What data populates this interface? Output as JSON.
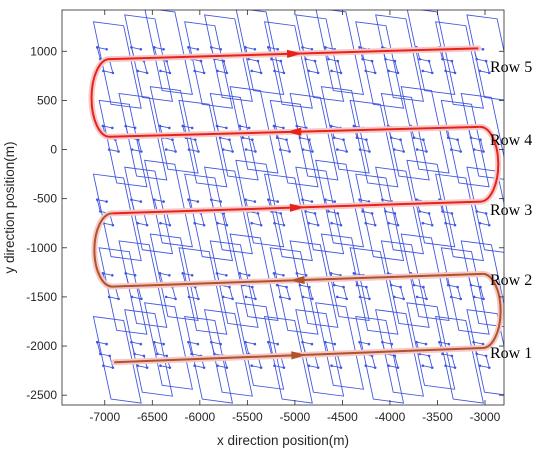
{
  "chart_data": {
    "type": "line",
    "xlabel": "x direction position(m)",
    "ylabel": "y direction position(m)",
    "xlim": [
      -7450,
      -2800
    ],
    "ylim": [
      -2600,
      1420
    ],
    "xticks": [
      -7000,
      -6500,
      -6000,
      -5500,
      -5000,
      -4500,
      -4000,
      -3500,
      -3000
    ],
    "yticks": [
      -2500,
      -2000,
      -1500,
      -1000,
      -500,
      0,
      500,
      1000
    ],
    "grid": false,
    "colors": {
      "row_path_red": "#e8221b",
      "row_path_brown": "#b0522a",
      "swath_lines": "#4257e0",
      "halo": "#f6c9c9"
    },
    "row_path": {
      "direction_arrows": "right, left, right, left, right",
      "rows": [
        {
          "label": "Row 1",
          "from": [
            -6900,
            -2165
          ],
          "to": [
            -3030,
            -2020
          ],
          "direction": "+x",
          "color": "row_path_brown"
        },
        {
          "label": "Row 2",
          "from": [
            -3020,
            -1265
          ],
          "to": [
            -6920,
            -1395
          ],
          "direction": "-x",
          "color": "row_path_brown"
        },
        {
          "label": "Row 3",
          "from": [
            -6920,
            -650
          ],
          "to": [
            -3040,
            -530
          ],
          "direction": "+x",
          "color": "row_path_red"
        },
        {
          "label": "Row 4",
          "from": [
            -3060,
            230
          ],
          "to": [
            -6950,
            130
          ],
          "direction": "-x",
          "color": "row_path_red"
        },
        {
          "label": "Row 5",
          "from": [
            -6950,
            920
          ],
          "to": [
            -3070,
            1030
          ],
          "direction": "+x",
          "color": "row_path_red"
        }
      ],
      "turns": [
        {
          "from_row": "Row 1",
          "to_row": "Row 2",
          "side": "right",
          "color": "row_path_brown"
        },
        {
          "from_row": "Row 2",
          "to_row": "Row 3",
          "side": "left",
          "color": "row_path_brown"
        },
        {
          "from_row": "Row 3",
          "to_row": "Row 4",
          "side": "right",
          "color": "row_path_red"
        },
        {
          "from_row": "Row 4",
          "to_row": "Row 5",
          "side": "left",
          "color": "row_path_red"
        }
      ]
    },
    "swath_pattern": {
      "description": "tilted blue survey rectangles with inner zig-zag tracks",
      "columns_x": [
        -7150,
        -6850,
        -6550,
        -6250,
        -5950,
        -5650,
        -5350,
        -5050,
        -4750,
        -4450,
        -4150,
        -3850,
        -3550,
        -3250
      ],
      "tilt_dx_per_dy": 0.22,
      "band_centers_y": [
        -2050,
        -1350,
        -600,
        150,
        950
      ],
      "band_half_height": 420
    },
    "annotations": [
      "Row 1",
      "Row 2",
      "Row 3",
      "Row 4",
      "Row 5"
    ]
  }
}
